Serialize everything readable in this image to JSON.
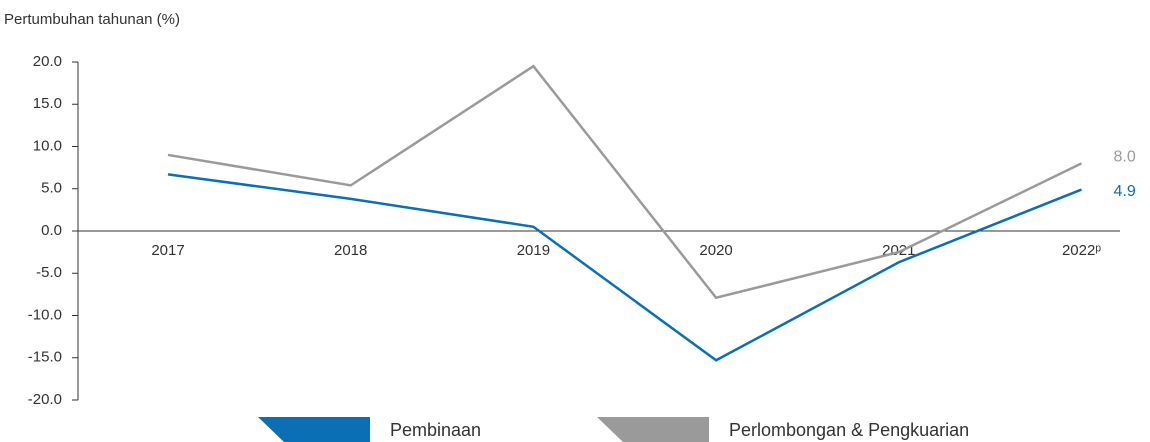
{
  "chart_data": {
    "type": "line",
    "y_label": "Pertumbuhan tahunan (%)",
    "categories": [
      "2017",
      "2018",
      "2019",
      "2020",
      "2021",
      "2022ᵖ"
    ],
    "series": [
      {
        "name": "Pembinaan",
        "color": "#0a6fb5",
        "values": [
          6.7,
          3.8,
          0.5,
          -15.3,
          -3.7,
          4.9
        ],
        "value_labels": [
          null,
          null,
          null,
          null,
          null,
          "4.9"
        ]
      },
      {
        "name": "Perlombongan & Pengkuarian",
        "color": "#9a9a9a",
        "values": [
          9.0,
          5.4,
          19.5,
          -7.9,
          -2.5,
          8.0
        ],
        "value_labels": [
          null,
          null,
          null,
          null,
          null,
          "8.0"
        ]
      }
    ],
    "ylim": [
      -20,
      20
    ],
    "yticks": [
      {
        "value": -20,
        "label": "-20.0"
      },
      {
        "value": -15,
        "label": "-15.0"
      },
      {
        "value": -10,
        "label": "-10.0"
      },
      {
        "value": -5,
        "label": "-5.0"
      },
      {
        "value": 0,
        "label": "0.0"
      },
      {
        "value": 5,
        "label": "5.0"
      },
      {
        "value": 10,
        "label": "10.0"
      },
      {
        "value": 15,
        "label": "15.0"
      },
      {
        "value": 20,
        "label": "20.0"
      }
    ],
    "legend": "bottom"
  }
}
